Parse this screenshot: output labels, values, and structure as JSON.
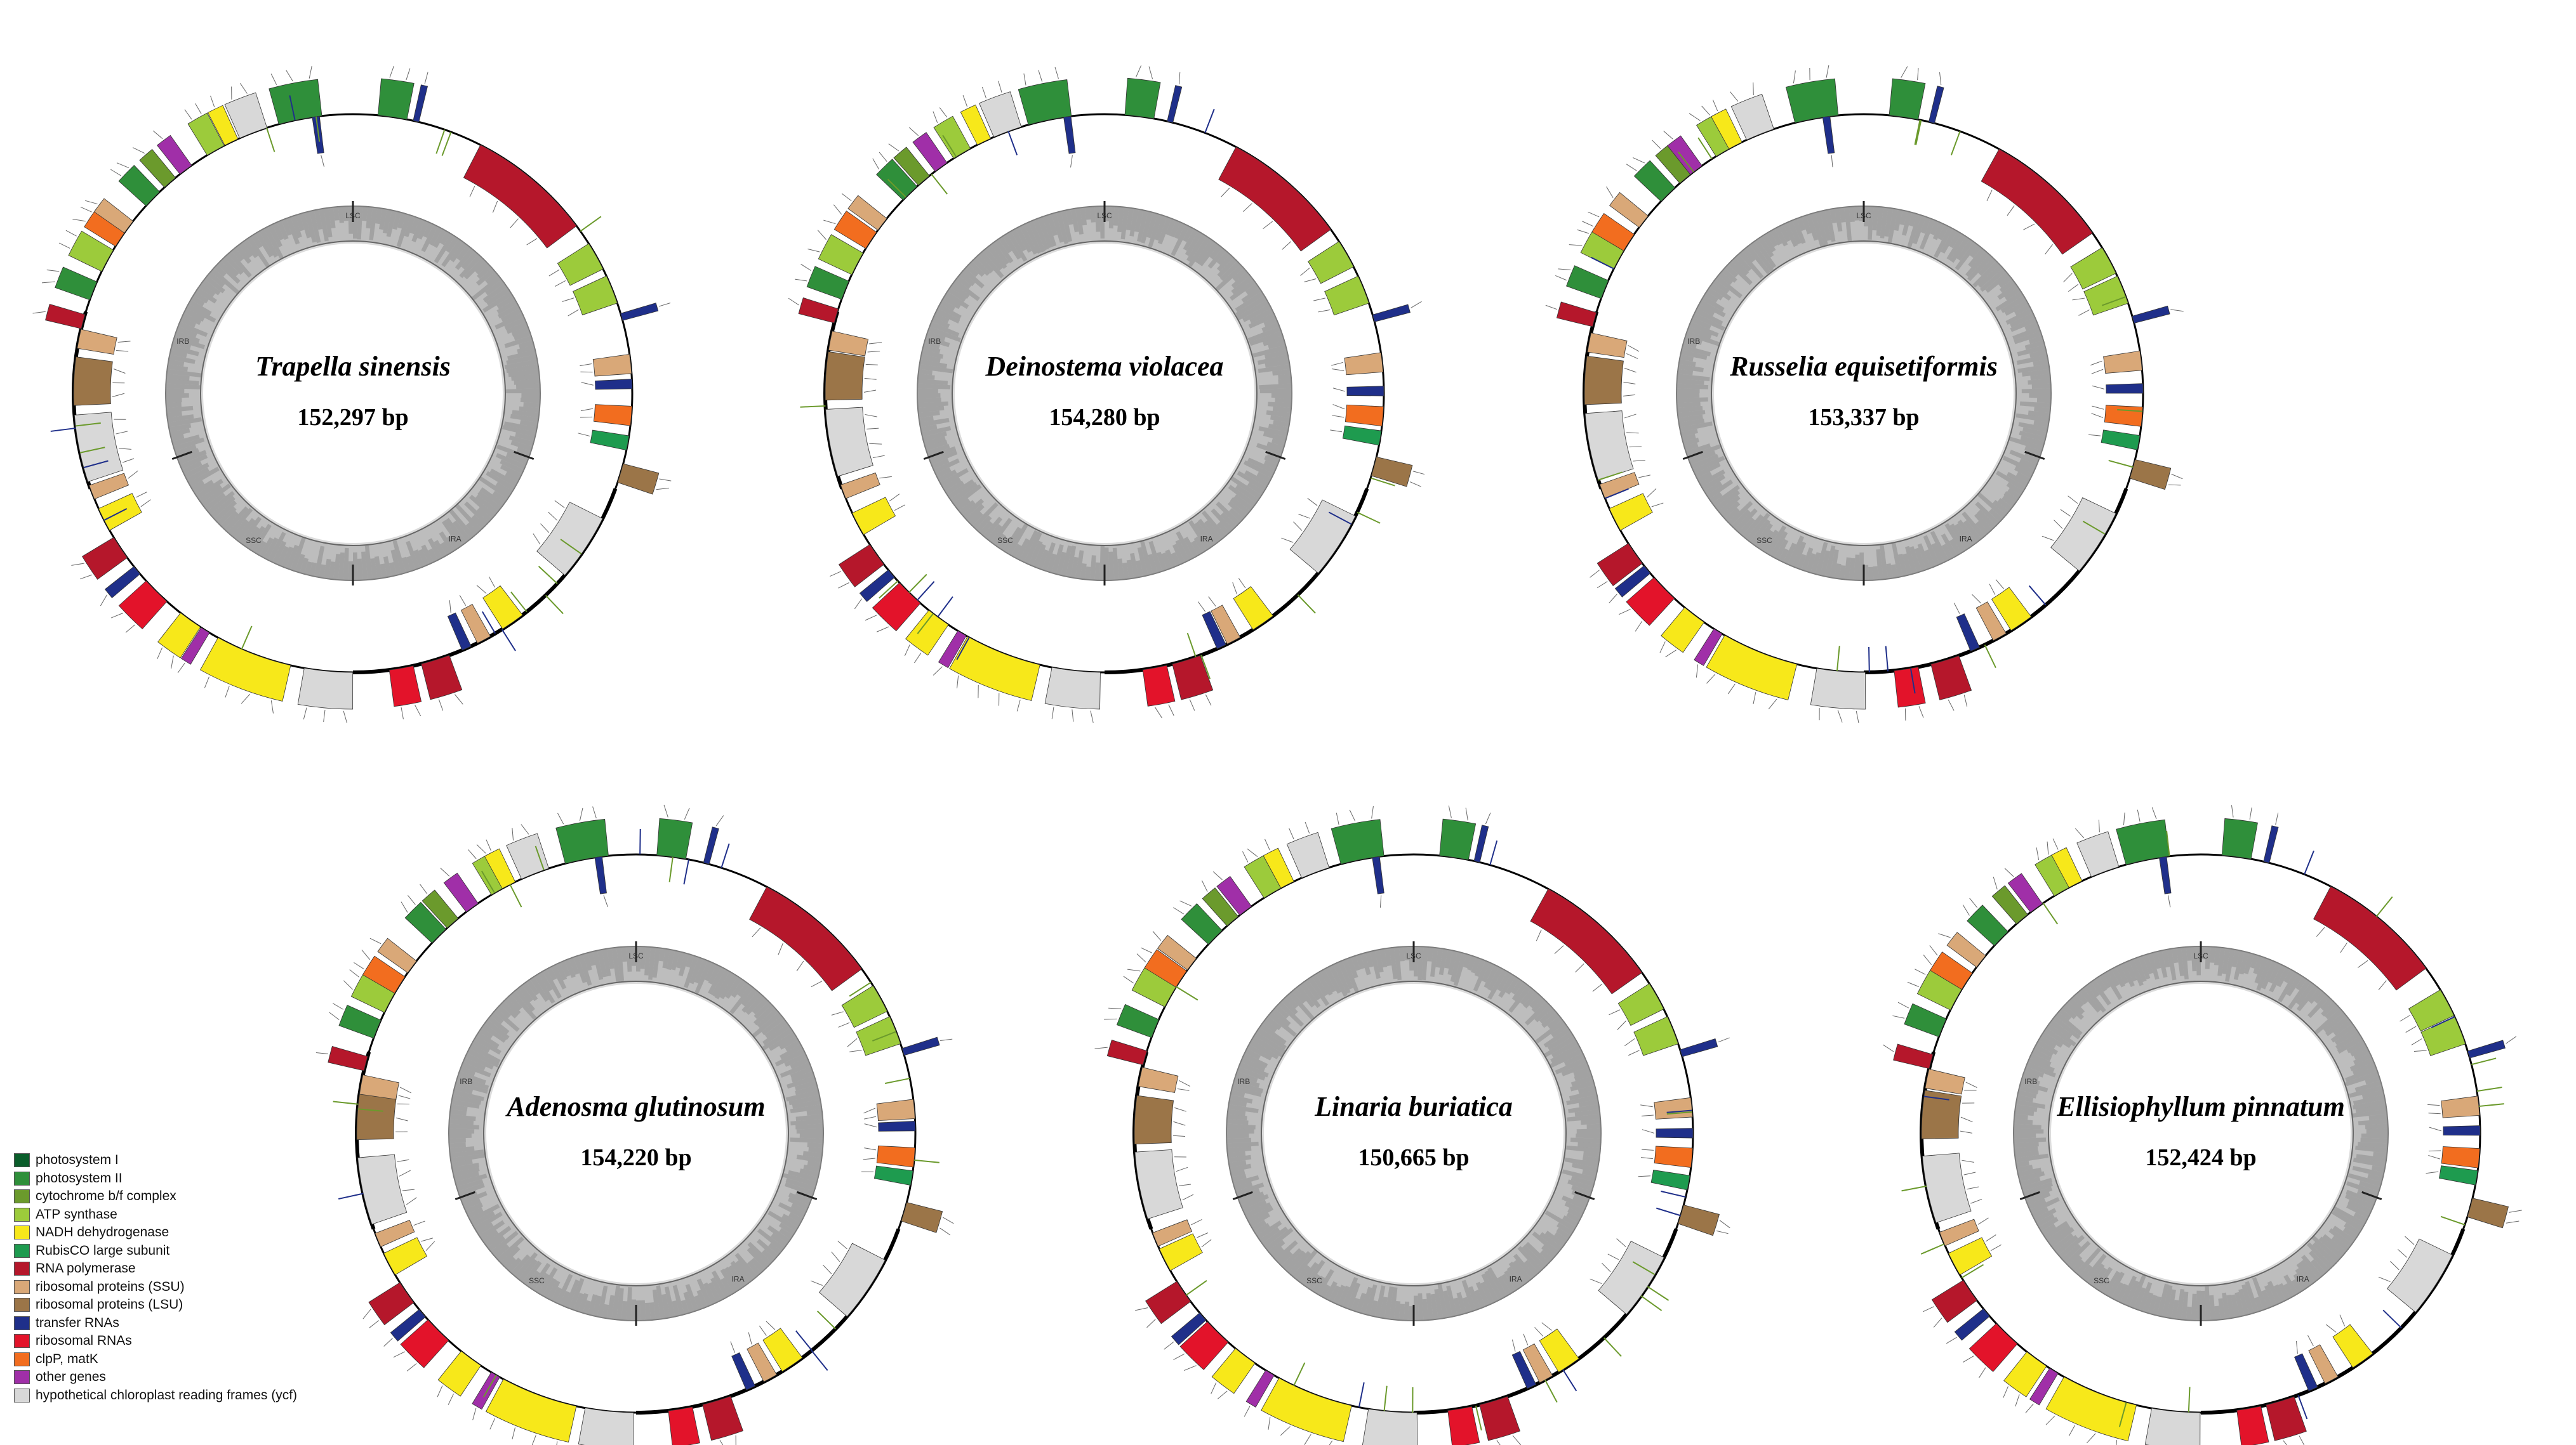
{
  "figure": {
    "maps": [
      {
        "species": "Trapella sinensis",
        "length": "152,297 bp"
      },
      {
        "species": "Deinostema violacea",
        "length": "154,280 bp"
      },
      {
        "species": "Russelia equisetiformis",
        "length": "153,337 bp"
      },
      {
        "species": "Adenosma glutinosum",
        "length": "154,220 bp"
      },
      {
        "species": "Linaria buriatica",
        "length": "150,665 bp"
      },
      {
        "species": "Ellisiophyllum pinnatum",
        "length": "152,424 bp"
      }
    ],
    "region_labels": [
      "LSC",
      "IRA",
      "SSC",
      "IRB"
    ]
  },
  "legend": {
    "items": [
      {
        "label": "photosystem I",
        "color": "#0b5e2b"
      },
      {
        "label": "photosystem II",
        "color": "#2f8f3a"
      },
      {
        "label": "cytochrome b/f complex",
        "color": "#6b9a2c"
      },
      {
        "label": "ATP synthase",
        "color": "#9ccb3b"
      },
      {
        "label": "NADH dehydrogenase",
        "color": "#f7e81a"
      },
      {
        "label": "RubisCO large subunit",
        "color": "#1e9b4f"
      },
      {
        "label": "RNA polymerase",
        "color": "#b5172b"
      },
      {
        "label": "ribosomal proteins (SSU)",
        "color": "#d9a878"
      },
      {
        "label": "ribosomal proteins (LSU)",
        "color": "#9b7548"
      },
      {
        "label": "transfer RNAs",
        "color": "#1f2f8a"
      },
      {
        "label": "ribosomal RNAs",
        "color": "#e3132a"
      },
      {
        "label": "clpP, matK",
        "color": "#f26d1f"
      },
      {
        "label": "other genes",
        "color": "#a02fa8"
      },
      {
        "label": "hypothetical chloroplast reading frames (ycf)",
        "color": "#d8d8d8"
      }
    ]
  }
}
